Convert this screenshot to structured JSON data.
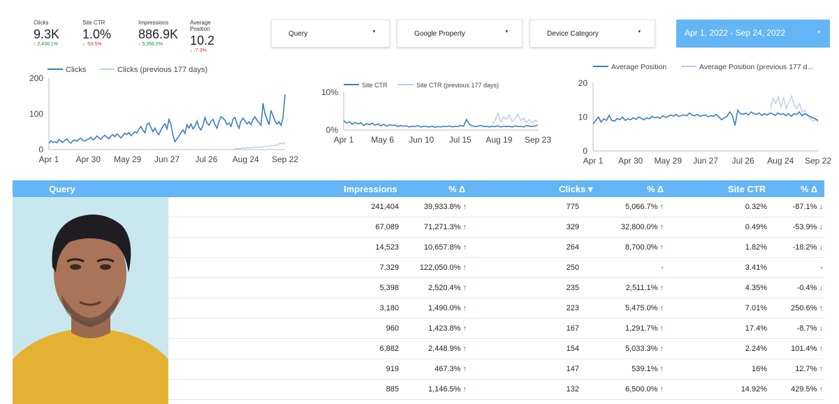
{
  "scorecards": [
    {
      "label": "Clicks",
      "value": "9.3K",
      "change": "↑ 2,436.1%",
      "dir": "up"
    },
    {
      "label": "Site CTR",
      "value": "1.0%",
      "change": "↓ -53.5%",
      "dir": "down"
    },
    {
      "label": "Impressions",
      "value": "886.9K",
      "change": "↑ 5,356.5%",
      "dir": "up"
    },
    {
      "label": "Average Position",
      "value": "10.2",
      "change": "↓ -7.3%",
      "dir": "down"
    }
  ],
  "filters": {
    "query": "Query",
    "property": "Google Property",
    "device": "Device Category",
    "date_range": "Apr 1, 2022 - Sep 24, 2022",
    "dropdown_arrow": "▾"
  },
  "chart_data": [
    {
      "type": "line",
      "x_labels": [
        "Apr 1",
        "Apr 30",
        "May 29",
        "Jun 27",
        "Jul 26",
        "Aug 24",
        "Sep 22"
      ],
      "y_ticks": [
        "0",
        "100",
        "200"
      ],
      "ylim": [
        0,
        200
      ],
      "series": [
        {
          "name": "Clicks",
          "color": "#3d7ebf",
          "values": [
            18,
            25,
            20,
            22,
            19,
            28,
            24,
            20,
            26,
            30,
            22,
            18,
            25,
            27,
            23,
            29,
            32,
            26,
            24,
            28,
            30,
            35,
            27,
            31,
            38,
            33,
            29,
            36,
            40,
            34,
            30,
            38,
            42,
            36,
            44,
            38,
            33,
            40,
            46,
            42,
            48,
            39,
            44,
            50,
            46,
            58,
            65,
            54,
            47,
            70,
            75,
            62,
            50,
            60,
            48,
            42,
            55,
            66,
            72,
            58,
            85,
            70,
            40,
            22,
            30,
            38,
            48,
            55,
            45,
            70,
            60,
            72,
            58,
            65,
            80,
            62,
            55,
            68,
            90,
            75,
            68,
            80,
            85,
            70,
            60,
            78,
            92,
            88,
            82,
            70,
            75,
            65,
            85,
            90,
            72,
            60,
            80,
            88,
            80,
            72,
            78,
            70,
            85,
            92,
            82,
            75,
            68,
            130,
            100,
            85,
            70,
            110,
            95,
            80,
            72,
            78,
            68,
            90,
            155
          ]
        },
        {
          "name": "Clicks (previous 177 days)",
          "color": "#b5cfec",
          "values": [
            0,
            0,
            0,
            0,
            0,
            0,
            0,
            0,
            0,
            0,
            0,
            0,
            0,
            0,
            0,
            0,
            0,
            0,
            0,
            0,
            0,
            0,
            0,
            0,
            0,
            0,
            0,
            0,
            0,
            0,
            0,
            0,
            0,
            0,
            0,
            0,
            0,
            0,
            0,
            0,
            0,
            0,
            0,
            0,
            0,
            0,
            0,
            0,
            0,
            0,
            0,
            0,
            0,
            0,
            0,
            0,
            0,
            0,
            0,
            0,
            0,
            0,
            0,
            0,
            0,
            0,
            0,
            0,
            0,
            0,
            0,
            0,
            0,
            0,
            0,
            0,
            0,
            0,
            0,
            0,
            0,
            0,
            0,
            0,
            0,
            0,
            0,
            0,
            0,
            0,
            0,
            0,
            0,
            2,
            3,
            2,
            4,
            5,
            3,
            6,
            5,
            4,
            6,
            7,
            5,
            8,
            6,
            7,
            10,
            8,
            9,
            12,
            10,
            14,
            11,
            16,
            18,
            15,
            22
          ]
        }
      ]
    },
    {
      "type": "line",
      "x_labels": [
        "Apr 1",
        "May 6",
        "Jun 10",
        "Jul 15",
        "Aug 19",
        "Sep 23"
      ],
      "y_ticks": [
        "0%",
        "10%"
      ],
      "ylim": [
        0,
        10
      ],
      "series": [
        {
          "name": "Site CTR",
          "color": "#3d7ebf",
          "values": [
            2.5,
            1.8,
            2.2,
            1.5,
            2.0,
            1.6,
            1.9,
            1.2,
            1.7,
            1.4,
            1.8,
            1.3,
            1.6,
            1.1,
            1.5,
            1.0,
            1.4,
            1.2,
            1.3,
            0.9,
            1.2,
            1.0,
            1.1,
            0.8,
            1.0,
            0.9,
            1.2,
            0.8,
            1.0,
            0.9,
            0.8,
            1.0,
            0.7,
            0.9,
            0.8,
            1.0,
            0.9,
            1.1,
            0.8,
            1.0,
            0.9,
            1.2,
            1.0,
            2.8,
            1.5,
            1.1,
            0.9,
            1.0,
            1.2,
            0.9,
            1.0,
            0.8,
            1.0,
            0.9,
            1.1,
            0.8,
            1.0,
            0.9,
            1.0,
            0.8,
            1.1,
            0.9,
            1.0,
            0.8,
            1.2,
            1.0,
            0.9,
            1.1,
            1.3
          ]
        },
        {
          "name": "Site CTR (previous 177 days)",
          "color": "#b5cfec",
          "values": [
            0,
            0,
            0,
            0,
            0,
            0,
            0,
            0,
            0,
            0,
            0,
            0,
            0,
            0,
            0,
            0,
            0,
            0,
            0,
            0,
            0,
            0,
            0,
            0,
            0,
            0,
            0,
            0,
            0,
            0,
            0,
            0,
            0,
            0,
            0,
            0,
            0,
            0,
            0,
            0,
            0,
            0,
            0,
            0,
            0,
            0,
            0,
            0,
            0,
            0,
            0,
            0,
            1.5,
            2.5,
            4.5,
            2.0,
            3.5,
            2.8,
            4.0,
            2.2,
            3.0,
            4.2,
            2.5,
            3.2,
            2.0,
            2.8,
            1.8,
            2.6,
            2.2
          ]
        }
      ]
    },
    {
      "type": "line",
      "x_labels": [
        "Apr 1",
        "Apr 30",
        "May 29",
        "Jun 27",
        "Jul 26",
        "Aug 24",
        "Sep 22"
      ],
      "y_ticks": [
        "0",
        "10",
        "20"
      ],
      "ylim": [
        0,
        20
      ],
      "series": [
        {
          "name": "Average Position",
          "color": "#3d7ebf",
          "values": [
            8,
            9,
            10,
            8.5,
            9.5,
            9,
            10.5,
            9,
            8.8,
            9.6,
            9.2,
            10,
            9,
            9.5,
            9.2,
            9.8,
            9.3,
            10,
            9.6,
            9.2,
            9.8,
            9.5,
            10.2,
            9.8,
            10,
            9.6,
            10.4,
            9.9,
            10.2,
            10.6,
            10.3,
            10.8,
            10.2,
            10.5,
            10.6,
            10.4,
            11.2,
            10.6,
            10.4,
            10.8,
            10.2,
            10.5,
            10.6,
            10.1,
            10.4,
            10.2,
            10.8,
            10,
            9.2,
            9.8,
            10.2,
            11.5,
            10.5,
            7.5,
            12,
            11,
            10.8,
            11.2,
            10.6,
            11.5,
            11,
            10.8,
            11.2,
            10.5,
            11,
            10.6,
            11.2,
            11,
            10.5,
            11.2,
            10.8,
            11,
            10.4,
            11,
            10.2,
            11,
            10.8,
            11.5,
            10.4,
            11,
            10.6,
            10.2,
            9.8,
            9.5,
            9
          ]
        },
        {
          "name": "Average Position (previous 177 d...",
          "color": "#b5cfec",
          "values": [
            0,
            0,
            0,
            0,
            0,
            0,
            0,
            0,
            0,
            0,
            0,
            0,
            0,
            0,
            0,
            0,
            0,
            0,
            0,
            0,
            0,
            0,
            0,
            0,
            0,
            0,
            0,
            0,
            0,
            0,
            0,
            0,
            0,
            0,
            0,
            0,
            0,
            0,
            0,
            0,
            0,
            0,
            0,
            0,
            0,
            0,
            0,
            0,
            0,
            0,
            0,
            0,
            0,
            0,
            0,
            0,
            0,
            0,
            0,
            0,
            0,
            0,
            0,
            0,
            0,
            0,
            0,
            12.5,
            15.5,
            14,
            16,
            13,
            15.8,
            12.5,
            14.5,
            16.2,
            13.5,
            12.5,
            14,
            11.5,
            12,
            10.5,
            9.5,
            8.8,
            9.2,
            8.5
          ]
        }
      ]
    }
  ],
  "table": {
    "headers": {
      "query": "Query",
      "impressions": "Impressions",
      "imp_delta": "% Δ",
      "clicks": "Clicks ▾",
      "clicks_delta": "% Δ",
      "ctr": "Site CTR",
      "ctr_delta": "% Δ"
    },
    "rows": [
      {
        "imp": "241,404",
        "imp_d": "39,933.8% ↑",
        "clk": "775",
        "clk_d": "5,066.7% ↑",
        "ctr": "0.32%",
        "ctr_d": "-87.1% ↓",
        "ctr_dir": "down"
      },
      {
        "imp": "67,089",
        "imp_d": "71,271.3% ↑",
        "clk": "329",
        "clk_d": "32,800.0% ↑",
        "ctr": "0.49%",
        "ctr_d": "-53.9% ↓",
        "ctr_dir": "down"
      },
      {
        "imp": "14,523",
        "imp_d": "10,657.8% ↑",
        "clk": "264",
        "clk_d": "8,700.0% ↑",
        "ctr": "1.82%",
        "ctr_d": "-18.2% ↓",
        "ctr_dir": "down"
      },
      {
        "imp": "7,329",
        "imp_d": "122,050.0% ↑",
        "clk": "250",
        "clk_d": "-",
        "ctr": "3.41%",
        "ctr_d": "-",
        "ctr_dir": "none"
      },
      {
        "imp": "5,398",
        "imp_d": "2,520.4% ↑",
        "clk": "235",
        "clk_d": "2,511.1% ↑",
        "ctr": "4.35%",
        "ctr_d": "-0.4% ↓",
        "ctr_dir": "down"
      },
      {
        "imp": "3,180",
        "imp_d": "1,490.0% ↑",
        "clk": "223",
        "clk_d": "5,475.0% ↑",
        "ctr": "7.01%",
        "ctr_d": "250.6% ↑",
        "ctr_dir": "up"
      },
      {
        "imp": "960",
        "imp_d": "1,423.8% ↑",
        "clk": "167",
        "clk_d": "1,291.7% ↑",
        "ctr": "17.4%",
        "ctr_d": "-8.7% ↓",
        "ctr_dir": "down"
      },
      {
        "imp": "6,882",
        "imp_d": "2,448.9% ↑",
        "clk": "154",
        "clk_d": "5,033.3% ↑",
        "ctr": "2.24%",
        "ctr_d": "101.4% ↑",
        "ctr_dir": "up"
      },
      {
        "imp": "919",
        "imp_d": "467.3% ↑",
        "clk": "147",
        "clk_d": "539.1% ↑",
        "ctr": "16%",
        "ctr_d": "12.7% ↑",
        "ctr_dir": "up"
      },
      {
        "imp": "885",
        "imp_d": "1,146.5% ↑",
        "clk": "132",
        "clk_d": "6,500.0% ↑",
        "ctr": "14.92%",
        "ctr_d": "429.5% ↑",
        "ctr_dir": "up"
      }
    ]
  },
  "colors": {
    "accent": "#64b5f6",
    "line": "#3d7ebf",
    "line_prev": "#b5cfec",
    "up": "#1e8e3e",
    "down": "#d93025"
  }
}
